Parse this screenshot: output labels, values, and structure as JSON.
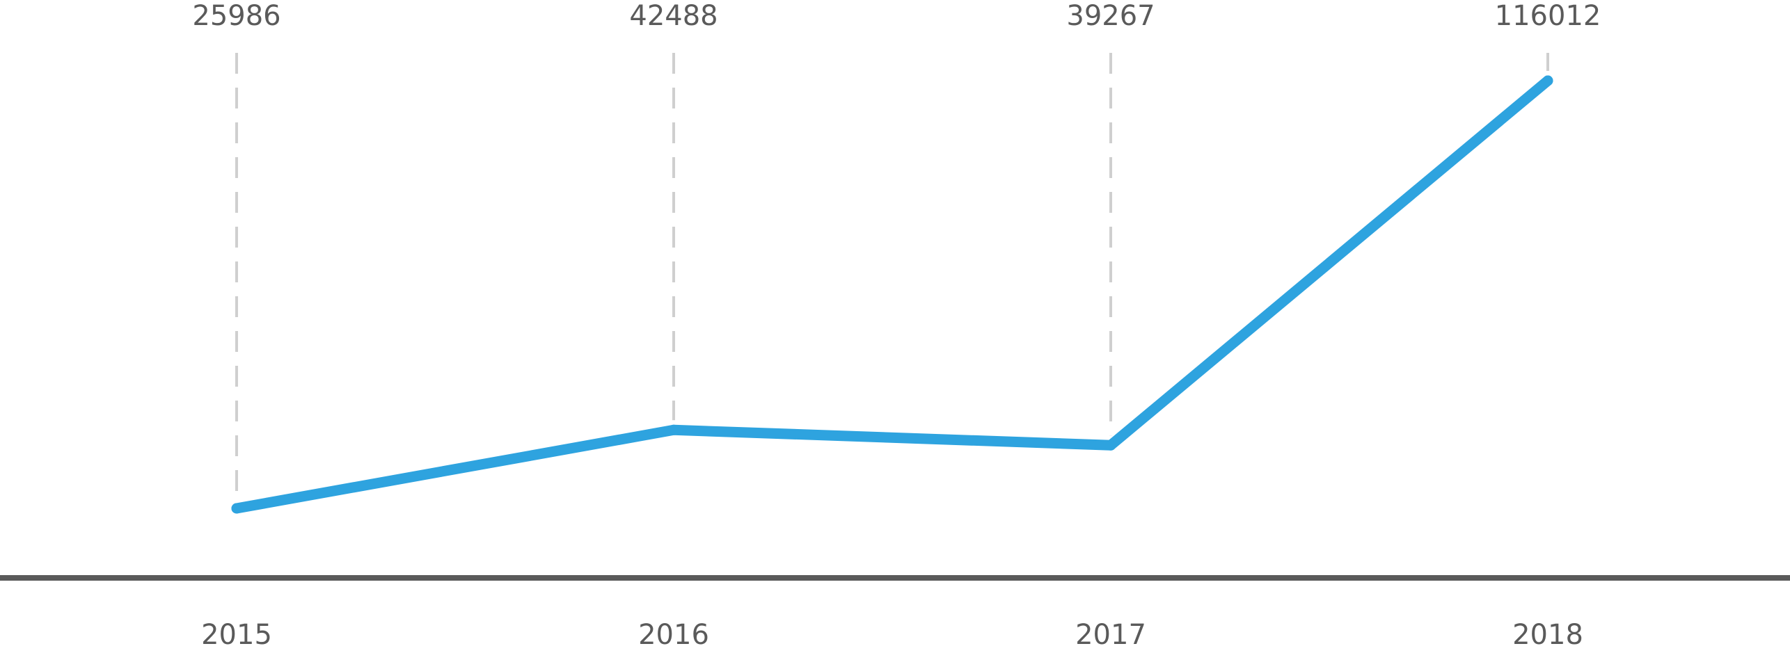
{
  "chart_data": {
    "type": "line",
    "title": "",
    "xlabel": "",
    "ylabel": "",
    "categories": [
      "2015",
      "2016",
      "2017",
      "2018"
    ],
    "series": [
      {
        "values": [
          25986,
          42488,
          39267,
          116012
        ]
      }
    ],
    "data_labels": [
      "25986",
      "42488",
      "39267",
      "116012"
    ],
    "grid": false,
    "legend": "none",
    "colors": {
      "line": "#2ea3df",
      "axis": "#5a5a5a",
      "guide": "#cfcfcf",
      "text": "#5a5a5a"
    }
  }
}
